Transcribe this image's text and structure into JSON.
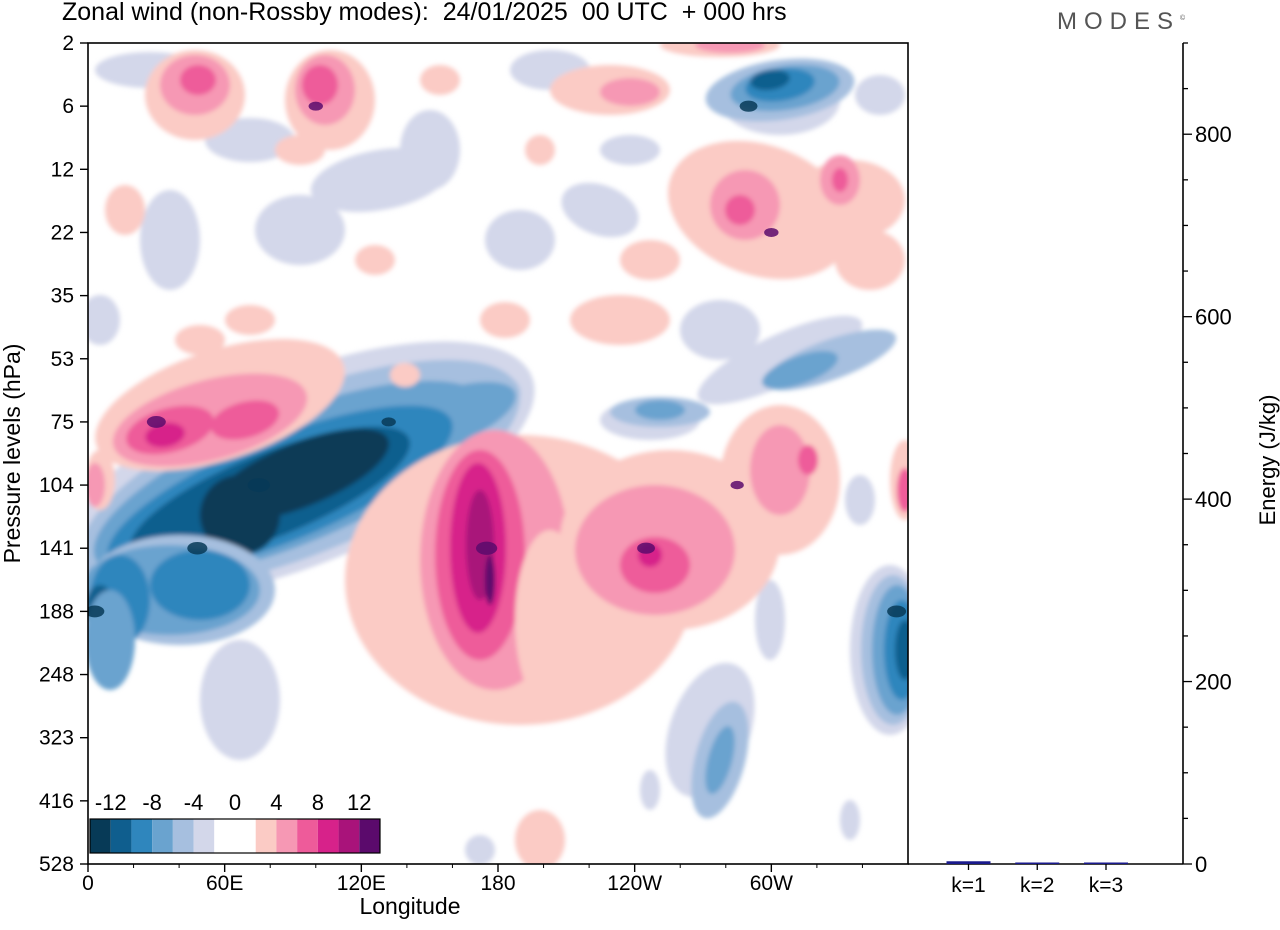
{
  "header": {
    "title": "Zonal wind (non-Rossby modes):  24/01/2025  00 UTC  + 000 hrs",
    "logo": "MODES",
    "logo_mark": "©"
  },
  "chart_data": [
    {
      "type": "heatmap",
      "title": "Zonal wind (non-Rossby modes):  24/01/2025  00 UTC  + 000 hrs",
      "xlabel": "Longitude",
      "ylabel": "Pressure levels (hPa)",
      "x_ticks": [
        "0",
        "60E",
        "120E",
        "180",
        "120W",
        "60W"
      ],
      "x_tick_values": [
        0,
        60,
        120,
        180,
        240,
        300
      ],
      "xlim": [
        0,
        360
      ],
      "y_ticks": [
        "2",
        "6",
        "12",
        "22",
        "35",
        "53",
        "75",
        "104",
        "141",
        "188",
        "248",
        "323",
        "416",
        "528"
      ],
      "y_tick_values": [
        2,
        6,
        12,
        22,
        35,
        53,
        75,
        104,
        141,
        188,
        248,
        323,
        416,
        528
      ],
      "y_order": "top-to-bottom",
      "grid": false,
      "colorbar": {
        "labels": [
          "-12",
          "-8",
          "-4",
          "0",
          "4",
          "8",
          "12"
        ],
        "label_values": [
          -12,
          -8,
          -4,
          0,
          4,
          8,
          12
        ],
        "colors": [
          "#073a57",
          "#0f5e8e",
          "#2f86bd",
          "#6aa3cf",
          "#a6bfdf",
          "#d3d7ea",
          "#ffffff",
          "#ffffff",
          "#fbcbc5",
          "#f698b4",
          "#ee5b9a",
          "#d7228a",
          "#a9137a",
          "#5b0a6c"
        ],
        "placement": "bottom-left"
      },
      "features": [
        {
          "kind": "negative",
          "lon": 75,
          "level": 104,
          "value": -14
        },
        {
          "kind": "negative",
          "lon": 48,
          "level": 141,
          "value": -12
        },
        {
          "kind": "negative",
          "lon": 3,
          "level": 188,
          "value": -11
        },
        {
          "kind": "negative",
          "lon": 132,
          "level": 75,
          "value": -7
        },
        {
          "kind": "negative",
          "lon": 290,
          "level": 6,
          "value": -10
        },
        {
          "kind": "negative",
          "lon": 355,
          "level": 188,
          "value": -11
        },
        {
          "kind": "positive",
          "lon": 30,
          "level": 75,
          "value": 11
        },
        {
          "kind": "positive",
          "lon": 175,
          "level": 141,
          "value": 13
        },
        {
          "kind": "positive",
          "lon": 245,
          "level": 141,
          "value": 10
        },
        {
          "kind": "positive",
          "lon": 285,
          "level": 104,
          "value": 6
        },
        {
          "kind": "positive",
          "lon": 300,
          "level": 22,
          "value": 7
        },
        {
          "kind": "positive",
          "lon": 100,
          "level": 6,
          "value": 7
        }
      ]
    },
    {
      "type": "bar",
      "categories": [
        "k=1",
        "k=2",
        "k=3"
      ],
      "values": [
        3,
        1,
        1
      ],
      "ylabel": "Energy (J/kg)",
      "ylim": [
        0,
        900
      ],
      "y_ticks": [
        0,
        200,
        400,
        600,
        800
      ],
      "bar_color": "#1a1a8c"
    }
  ]
}
